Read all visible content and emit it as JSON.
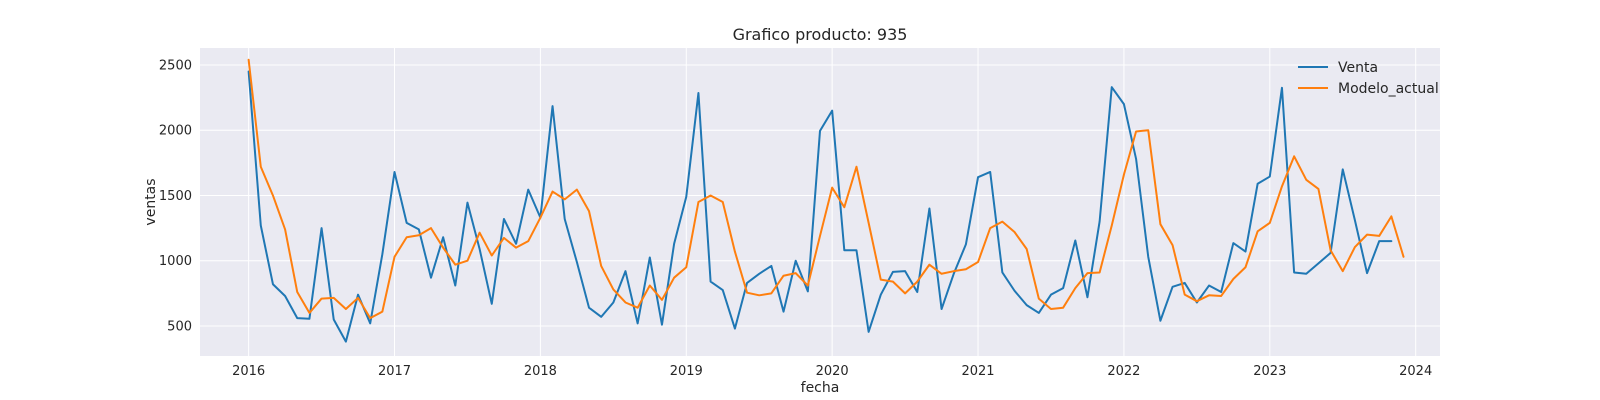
{
  "chart_data": {
    "type": "line",
    "title": "Grafico producto: 935",
    "xlabel": "fecha",
    "ylabel": "ventas",
    "x_start": "2016-01",
    "x_frequency": "monthly",
    "xlim": [
      "2015-09",
      "2024-03"
    ],
    "ylim": [
      270,
      2630
    ],
    "xticks": [
      "2016",
      "2017",
      "2018",
      "2019",
      "2020",
      "2021",
      "2022",
      "2023",
      "2024"
    ],
    "yticks": [
      500,
      1000,
      1500,
      2000,
      2500
    ],
    "grid": true,
    "legend_position": "top-right",
    "series": [
      {
        "name": "Venta",
        "color": "#1f77b4",
        "values": [
          2450,
          1270,
          820,
          730,
          560,
          555,
          1250,
          550,
          380,
          740,
          520,
          1050,
          1680,
          1290,
          1240,
          870,
          1180,
          810,
          1445,
          1090,
          670,
          1320,
          1130,
          1545,
          1330,
          2185,
          1320,
          990,
          640,
          570,
          680,
          920,
          520,
          1025,
          510,
          1130,
          1490,
          2285,
          840,
          775,
          480,
          830,
          900,
          960,
          610,
          1000,
          765,
          1995,
          2150,
          1080,
          1080,
          455,
          740,
          915,
          920,
          760,
          1400,
          630,
          900,
          1125,
          1640,
          1680,
          910,
          770,
          660,
          600,
          740,
          790,
          1155,
          720,
          1300,
          2330,
          2200,
          1780,
          1030,
          540,
          800,
          830,
          680,
          810,
          760,
          1135,
          1070,
          1590,
          1645,
          2325,
          910,
          900,
          980,
          1060,
          1700,
          1310,
          905,
          1150,
          1150
        ]
      },
      {
        "name": "Modelo_actual",
        "color": "#ff7f0e",
        "values": [
          2540,
          1720,
          1500,
          1240,
          760,
          600,
          710,
          715,
          630,
          715,
          560,
          610,
          1030,
          1180,
          1195,
          1250,
          1100,
          970,
          1000,
          1215,
          1040,
          1175,
          1100,
          1150,
          1330,
          1530,
          1470,
          1545,
          1380,
          960,
          780,
          680,
          640,
          810,
          700,
          870,
          950,
          1450,
          1500,
          1450,
          1070,
          755,
          735,
          750,
          885,
          905,
          810,
          1190,
          1560,
          1410,
          1720,
          1290,
          855,
          840,
          750,
          840,
          970,
          900,
          920,
          935,
          990,
          1250,
          1300,
          1220,
          1090,
          710,
          630,
          640,
          790,
          905,
          910,
          1270,
          1660,
          1990,
          2000,
          1280,
          1120,
          740,
          690,
          735,
          730,
          860,
          950,
          1225,
          1290,
          1570,
          1800,
          1620,
          1550,
          1080,
          920,
          1105,
          1200,
          1190,
          1340,
          1030
        ]
      }
    ]
  }
}
